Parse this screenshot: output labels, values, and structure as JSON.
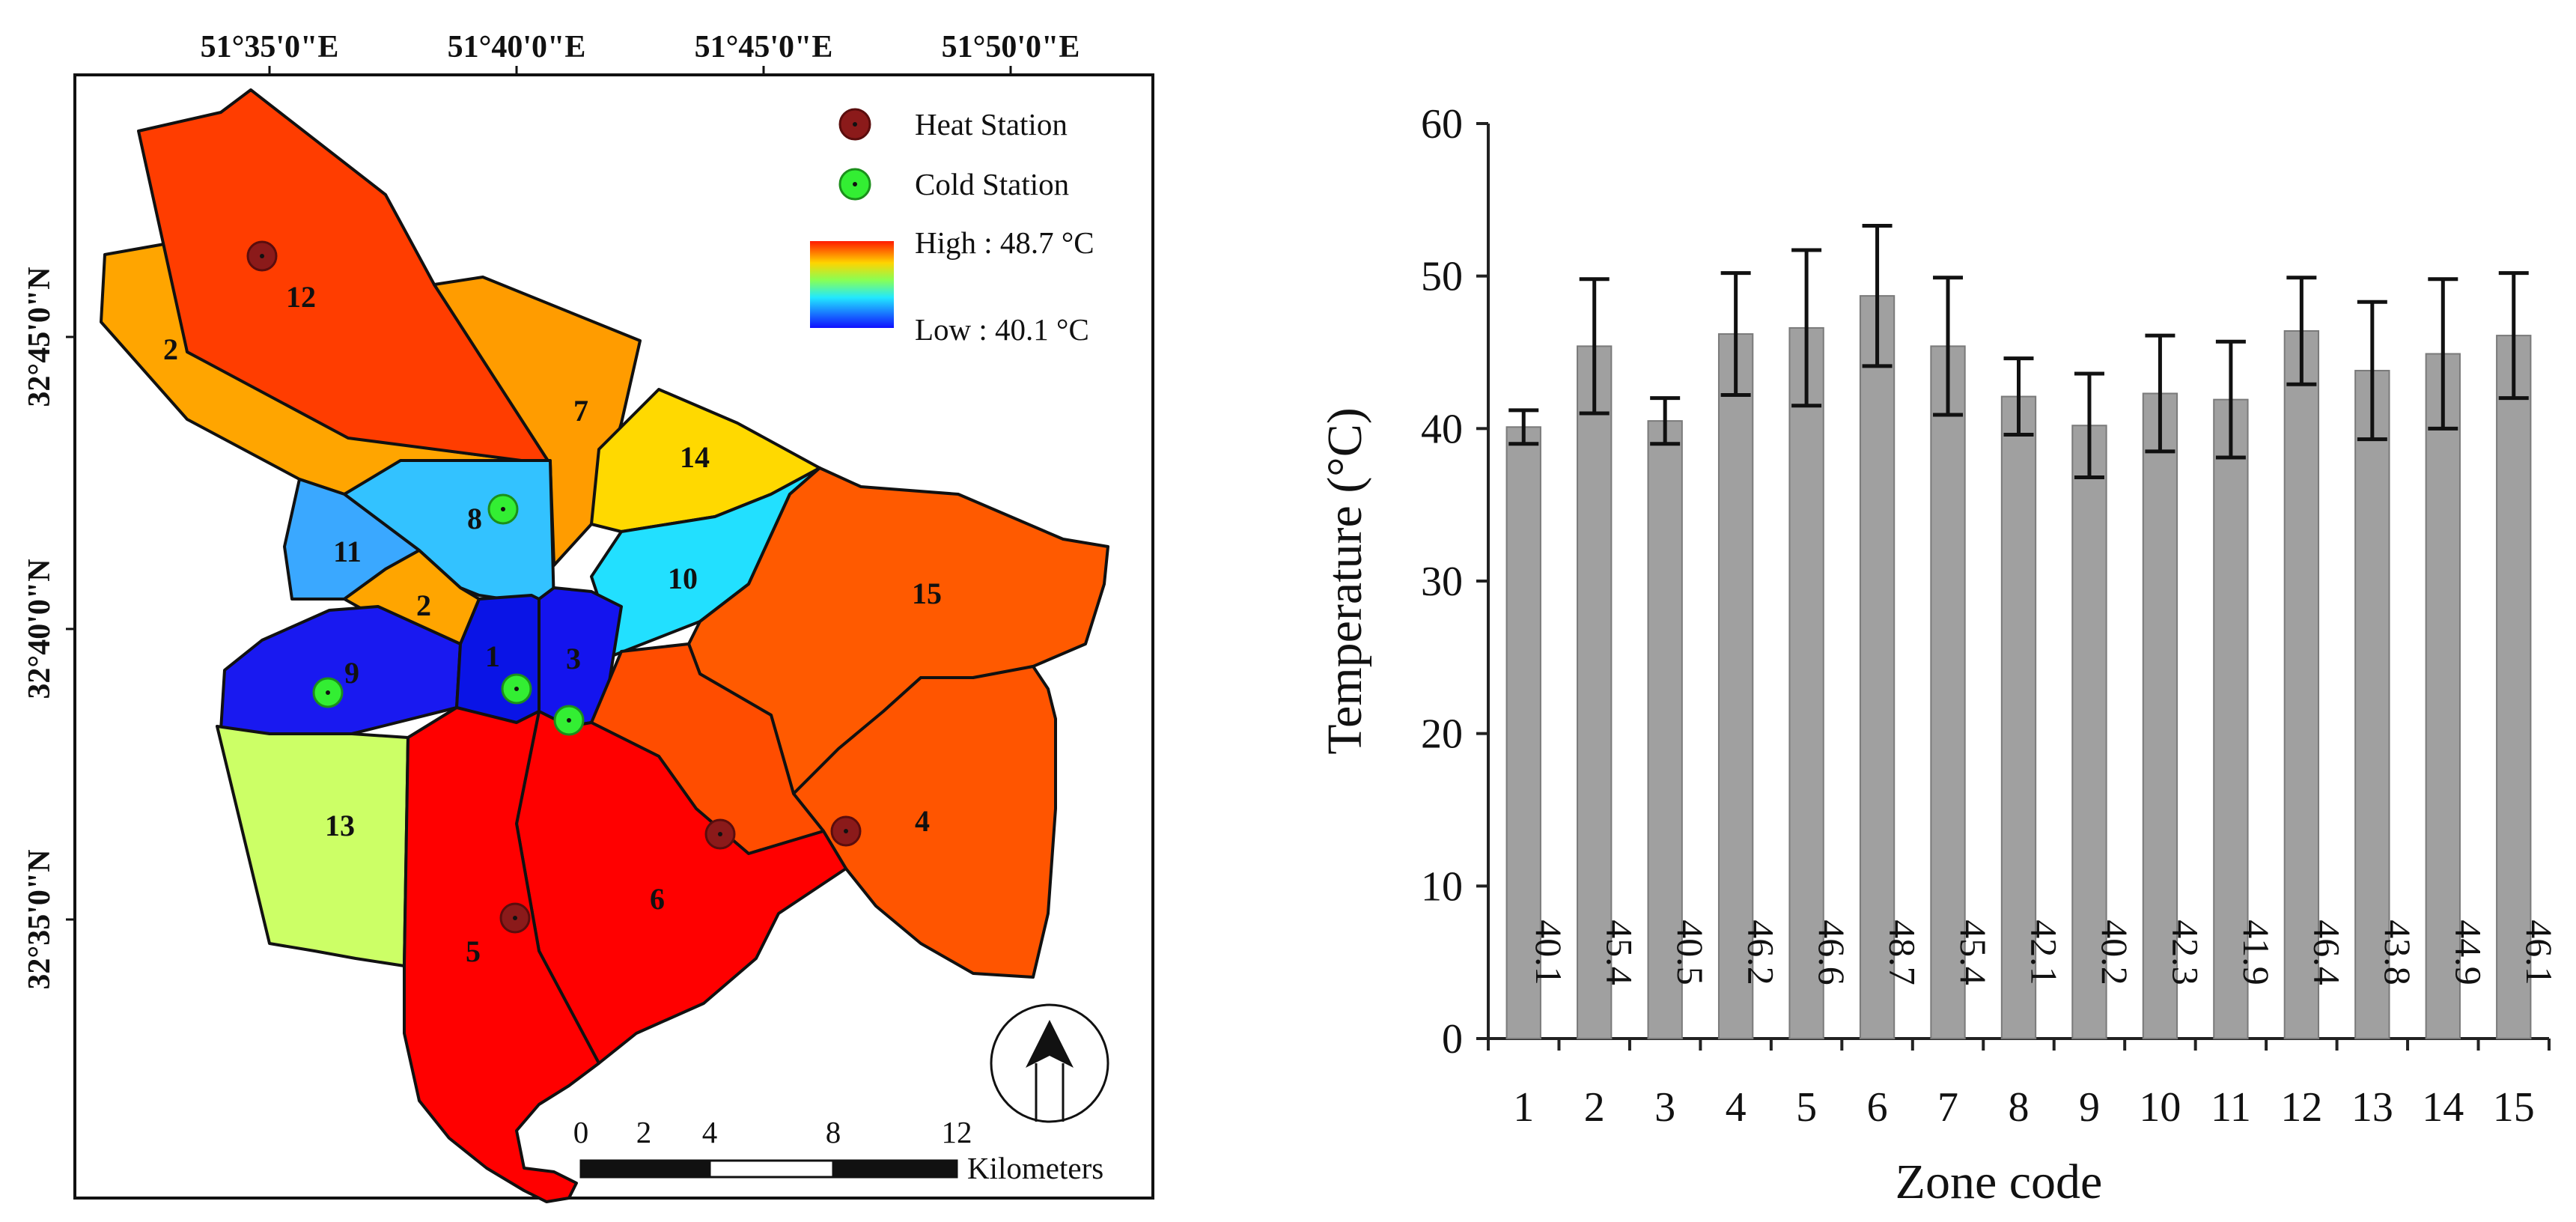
{
  "map": {
    "lon_labels": [
      "51°35'0\"E",
      "51°40'0\"E",
      "51°45'0\"E",
      "51°50'0\"E"
    ],
    "lat_labels": [
      "32°45'0\"N",
      "32°40'0\"N",
      "32°35'0\"N"
    ],
    "legend": {
      "heat_station": "Heat Station",
      "cold_station": "Cold Station",
      "high": "High : 48.7 °C",
      "low": "Low : 40.1 °C"
    },
    "zone_labels": [
      "12",
      "2",
      "7",
      "14",
      "8",
      "11",
      "2",
      "10",
      "15",
      "1",
      "3",
      "9",
      "13",
      "4",
      "6",
      "5"
    ],
    "scale_ticks": [
      "0",
      "2",
      "4",
      "8",
      "12"
    ],
    "scale_unit": "Kilometers",
    "colors": {
      "heat": "#8b1a1a",
      "cold": "#33ee33"
    }
  },
  "chart_data": {
    "type": "bar",
    "categories": [
      "1",
      "2",
      "3",
      "4",
      "5",
      "6",
      "7",
      "8",
      "9",
      "10",
      "11",
      "12",
      "13",
      "14",
      "15"
    ],
    "values": [
      40.1,
      45.4,
      40.5,
      46.2,
      46.6,
      48.7,
      45.4,
      42.1,
      40.2,
      42.3,
      41.9,
      46.4,
      43.8,
      44.9,
      46.1
    ],
    "value_labels": [
      "40.1",
      "45.4",
      "40.5",
      "46.2",
      "46.6",
      "48.7",
      "45.4",
      "42.1",
      "40.2",
      "42.3",
      "41.9",
      "46.4",
      "43.8",
      "44.9",
      "46.1"
    ],
    "errors": [
      1.1,
      4.4,
      1.5,
      4.0,
      5.1,
      4.6,
      4.5,
      2.5,
      3.4,
      3.8,
      3.8,
      3.5,
      4.5,
      4.9,
      4.1
    ],
    "yticks": [
      "0",
      "10",
      "20",
      "30",
      "40",
      "50",
      "60"
    ],
    "ylim": [
      0,
      60
    ],
    "xlabel": "Zone code",
    "ylabel": "Temperature (°C)",
    "bar_color": "#a0a0a0",
    "error_bars": true
  }
}
